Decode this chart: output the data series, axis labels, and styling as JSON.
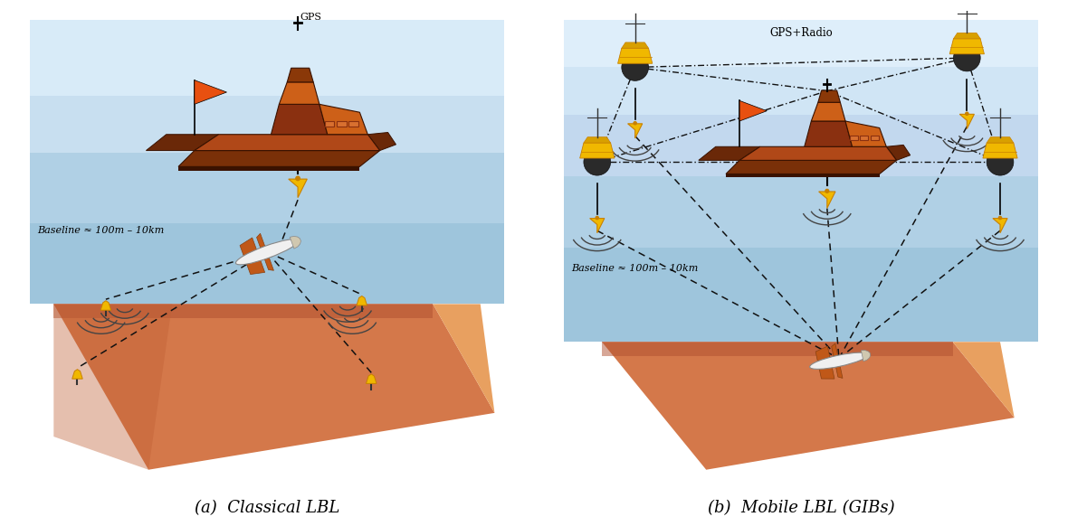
{
  "title_a": "(a)  Classical LBL",
  "title_b": "(b)  Mobile LBL (GIBs)",
  "caption_fontsize": 13,
  "bg_color": "#ffffff",
  "water_color": "#a8c8de",
  "water_top_color": "#c5dff0",
  "seabed_dark": "#c8623a",
  "seabed_mid": "#d9784a",
  "seabed_light": "#e8a060",
  "boat_hull_dark": "#7a3010",
  "boat_hull_side": "#6a2808",
  "boat_hull_top": "#b85018",
  "boat_bridge_front": "#cd6018",
  "boat_bridge_top": "#8a3808",
  "boat_window": "#d87030",
  "buoy_yellow": "#f0b800",
  "buoy_dark": "#c88000",
  "buoy_shadow": "#a06000",
  "dashed_color": "#111111",
  "dashdot_color": "#111111",
  "wave_color": "#444444",
  "text_baseline": "Baseline ≈ 100m – 10km",
  "gps_label": "GPS",
  "gps_radio_label": "GPS+Radio",
  "flag_color": "#e85010"
}
